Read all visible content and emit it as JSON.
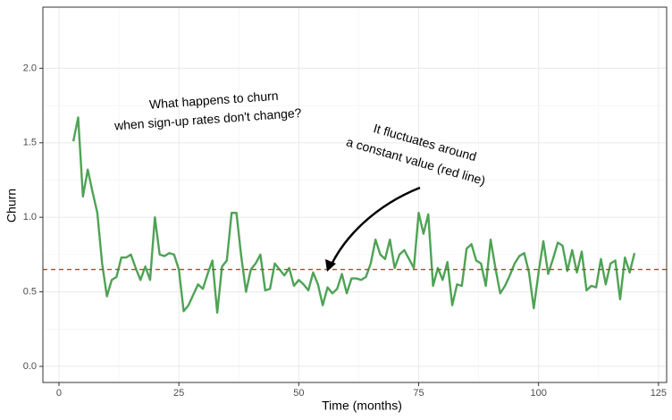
{
  "chart_data": {
    "type": "line",
    "xlabel": "Time (months)",
    "ylabel": "Churn",
    "x": [
      3,
      4,
      5,
      6,
      7,
      8,
      9,
      10,
      11,
      12,
      13,
      14,
      15,
      16,
      17,
      18,
      19,
      20,
      21,
      22,
      23,
      24,
      25,
      26,
      27,
      28,
      29,
      30,
      31,
      32,
      33,
      34,
      35,
      36,
      37,
      38,
      39,
      40,
      41,
      42,
      43,
      44,
      45,
      46,
      47,
      48,
      49,
      50,
      51,
      52,
      53,
      54,
      55,
      56,
      57,
      58,
      59,
      60,
      61,
      62,
      63,
      64,
      65,
      66,
      67,
      68,
      69,
      70,
      71,
      72,
      73,
      74,
      75,
      76,
      77,
      78,
      79,
      80,
      81,
      82,
      83,
      84,
      85,
      86,
      87,
      88,
      89,
      90,
      91,
      92,
      93,
      94,
      95,
      96,
      97,
      98,
      99,
      100,
      101,
      102,
      103,
      104,
      105,
      106,
      107,
      108,
      109,
      110,
      111,
      112,
      113,
      114,
      115,
      116,
      117,
      118,
      119,
      120
    ],
    "series": [
      {
        "color": "#4ea355",
        "values": [
          1.51,
          1.67,
          1.14,
          1.32,
          1.17,
          1.03,
          0.69,
          0.47,
          0.58,
          0.6,
          0.73,
          0.73,
          0.75,
          0.66,
          0.58,
          0.67,
          0.58,
          1.0,
          0.75,
          0.74,
          0.76,
          0.75,
          0.65,
          0.37,
          0.41,
          0.48,
          0.55,
          0.52,
          0.62,
          0.71,
          0.36,
          0.67,
          0.71,
          1.03,
          1.03,
          0.74,
          0.5,
          0.65,
          0.69,
          0.75,
          0.51,
          0.52,
          0.69,
          0.65,
          0.61,
          0.66,
          0.54,
          0.58,
          0.55,
          0.51,
          0.63,
          0.55,
          0.41,
          0.53,
          0.49,
          0.52,
          0.62,
          0.49,
          0.59,
          0.59,
          0.58,
          0.6,
          0.69,
          0.85,
          0.75,
          0.72,
          0.85,
          0.66,
          0.75,
          0.78,
          0.72,
          0.66,
          1.03,
          0.89,
          1.02,
          0.54,
          0.66,
          0.58,
          0.7,
          0.41,
          0.55,
          0.54,
          0.79,
          0.82,
          0.71,
          0.69,
          0.54,
          0.85,
          0.66,
          0.49,
          0.54,
          0.61,
          0.69,
          0.74,
          0.76,
          0.63,
          0.39,
          0.63,
          0.84,
          0.62,
          0.72,
          0.83,
          0.81,
          0.64,
          0.78,
          0.63,
          0.77,
          0.51,
          0.54,
          0.53,
          0.72,
          0.55,
          0.69,
          0.71,
          0.45,
          0.73,
          0.63,
          0.76
        ]
      }
    ],
    "hline": {
      "value": 0.65,
      "color": "#a0522d"
    },
    "annotations": [
      [
        "What happens to churn",
        "when sign-up rates don't change?"
      ],
      [
        "It fluctuates around",
        "a constant value (red line)"
      ]
    ],
    "xlim": [
      -3.35,
      126.7
    ],
    "xticks": [
      0,
      25,
      50,
      75,
      100,
      125
    ],
    "ylim": [
      -0.108,
      2.41
    ],
    "yticks": [
      {
        "value": 0,
        "label": "0.0"
      },
      0.5,
      {
        "value": 1,
        "label": "1.0"
      },
      1.5,
      {
        "value": 2,
        "label": "2.0"
      }
    ],
    "grid": true
  }
}
